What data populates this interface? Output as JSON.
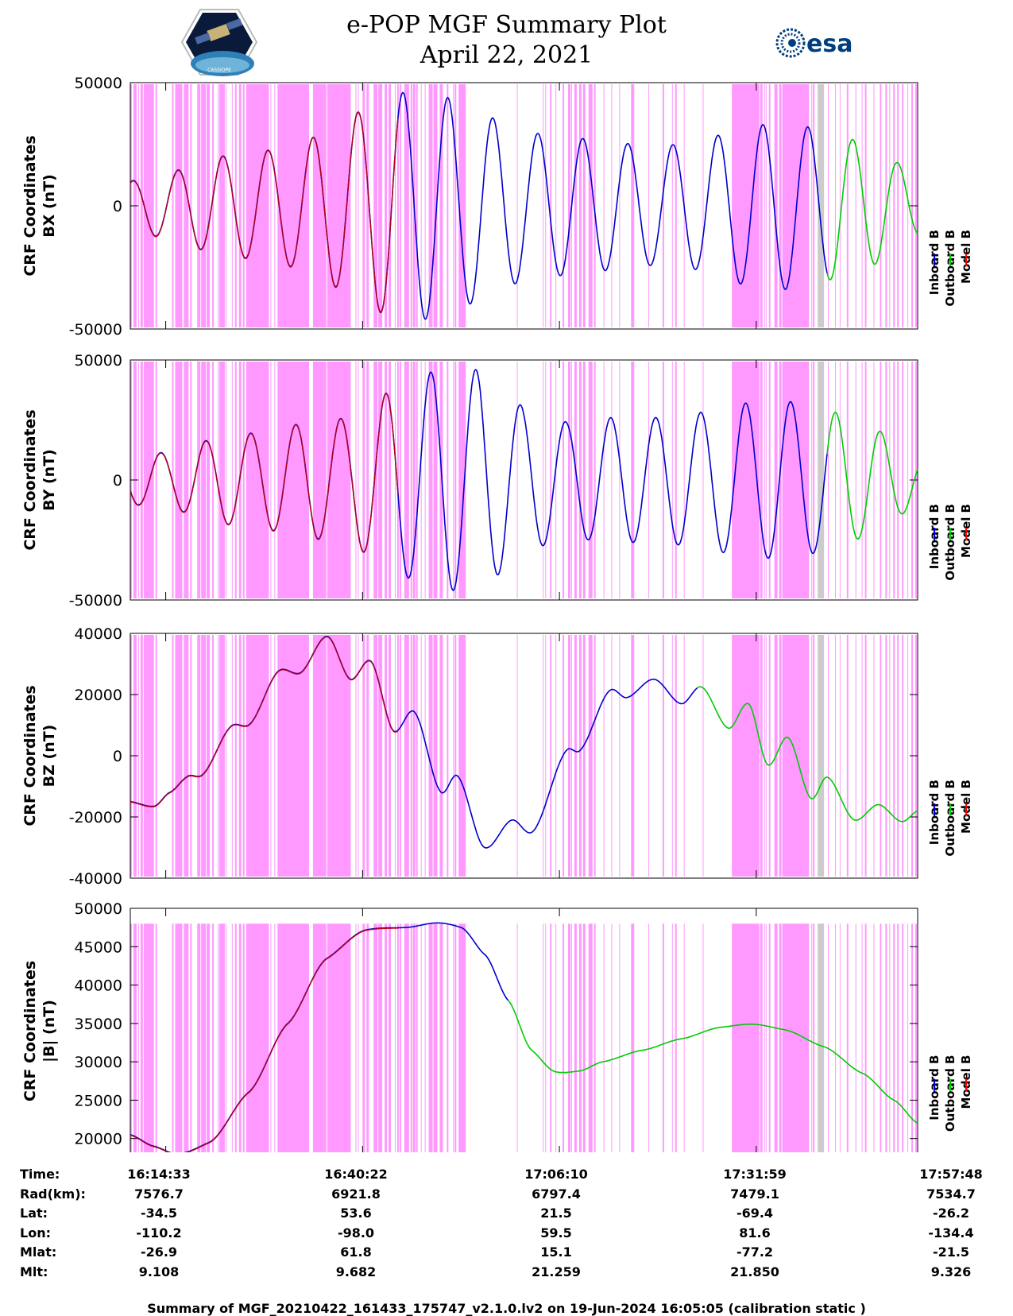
{
  "header": {
    "title_line1": "e-POP MGF Summary Plot",
    "title_line2": "April 22, 2021",
    "mission_logo_text": "CASSIOPE",
    "agency_logo_text": "esa"
  },
  "legend": {
    "items": [
      {
        "label": "Inboard B",
        "color": "#0000cc"
      },
      {
        "label": "Outboard B",
        "color": "#00cc00"
      },
      {
        "label": "Model B",
        "color": "#ff0000"
      }
    ]
  },
  "colors": {
    "shade": "#ff99ff",
    "shade_gray": "#cccccc",
    "inboard": "#0000cc",
    "outboard": "#00cc00",
    "model": "#cc0000"
  },
  "chart_data": [
    {
      "type": "line",
      "id": "bx",
      "ylabel_line1": "CRF Coordinates",
      "ylabel_line2": "BX (nT)",
      "ylim": [
        -50000,
        50000
      ],
      "yticks": [
        -50000,
        0,
        50000
      ],
      "ytick_labels": [
        "-50000",
        "0",
        "50000"
      ],
      "model_until_frac": 0.34,
      "outboard_from_frac": 0.885,
      "signal": {
        "kind": "osc",
        "offset": 0,
        "amps": [
          10000,
          14000,
          20000,
          22000,
          26000,
          36000,
          46000,
          46000,
          38000,
          30000,
          28000,
          26000,
          24000,
          26000,
          32000,
          34000,
          30000,
          24000,
          12000
        ],
        "phase": 1.2,
        "cycles": 17.5
      }
    },
    {
      "type": "line",
      "id": "by",
      "ylabel_line1": "CRF Coordinates",
      "ylabel_line2": "BY (nT)",
      "ylim": [
        -50000,
        50000
      ],
      "yticks": [
        -50000,
        0,
        50000
      ],
      "ytick_labels": [
        "-50000",
        "0",
        "50000"
      ],
      "model_until_frac": 0.34,
      "outboard_from_frac": 0.885,
      "signal": {
        "kind": "osc",
        "offset": 0,
        "amps": [
          10000,
          12000,
          18000,
          20000,
          24000,
          26000,
          38000,
          46000,
          46000,
          30000,
          24000,
          26000,
          26000,
          28000,
          32000,
          33000,
          29000,
          22000,
          10000
        ],
        "phase": 3.6,
        "cycles": 17.5
      }
    },
    {
      "type": "line",
      "id": "bz",
      "ylabel_line1": "CRF Coordinates",
      "ylabel_line2": "BZ (nT)",
      "ylim": [
        -40000,
        40000
      ],
      "yticks": [
        -40000,
        -20000,
        0,
        20000,
        40000
      ],
      "ytick_labels": [
        "-40000",
        "-20000",
        "0",
        "20000",
        "40000"
      ],
      "model_until_frac": 0.34,
      "outboard_from_frac": 0.72,
      "signal": {
        "kind": "points",
        "points": [
          [
            0,
            -15000
          ],
          [
            0.03,
            -16500
          ],
          [
            0.05,
            -12000
          ],
          [
            0.075,
            -6500
          ],
          [
            0.09,
            -6500
          ],
          [
            0.13,
            10000
          ],
          [
            0.15,
            10000
          ],
          [
            0.19,
            28000
          ],
          [
            0.215,
            27000
          ],
          [
            0.25,
            39000
          ],
          [
            0.28,
            25000
          ],
          [
            0.305,
            31000
          ],
          [
            0.335,
            8000
          ],
          [
            0.36,
            14500
          ],
          [
            0.395,
            -12000
          ],
          [
            0.415,
            -6500
          ],
          [
            0.45,
            -30000
          ],
          [
            0.485,
            -21000
          ],
          [
            0.51,
            -25000
          ],
          [
            0.555,
            2000
          ],
          [
            0.57,
            1500
          ],
          [
            0.61,
            21500
          ],
          [
            0.63,
            19000
          ],
          [
            0.665,
            25000
          ],
          [
            0.7,
            17000
          ],
          [
            0.725,
            22500
          ],
          [
            0.76,
            9000
          ],
          [
            0.785,
            17000
          ],
          [
            0.81,
            -3000
          ],
          [
            0.835,
            6000
          ],
          [
            0.865,
            -14000
          ],
          [
            0.885,
            -7000
          ],
          [
            0.92,
            -21000
          ],
          [
            0.95,
            -16000
          ],
          [
            0.98,
            -21500
          ],
          [
            1.0,
            -18000
          ]
        ]
      }
    },
    {
      "type": "line",
      "id": "bmag",
      "ylabel_line1": "CRF Coordinates",
      "ylabel_line2": "|B| (nT)",
      "ylim": [
        18000,
        50000
      ],
      "yticks": [
        20000,
        25000,
        30000,
        35000,
        40000,
        45000,
        50000
      ],
      "ytick_labels": [
        "20000",
        "25000",
        "30000",
        "35000",
        "40000",
        "45000",
        "50000"
      ],
      "model_until_frac": 0.34,
      "outboard_from_frac": 0.48,
      "shade_top_value": 48000,
      "signal": {
        "kind": "points",
        "points": [
          [
            0,
            20500
          ],
          [
            0.03,
            19000
          ],
          [
            0.06,
            18000
          ],
          [
            0.1,
            19500
          ],
          [
            0.15,
            26000
          ],
          [
            0.2,
            35000
          ],
          [
            0.25,
            43500
          ],
          [
            0.3,
            47200
          ],
          [
            0.35,
            47500
          ],
          [
            0.39,
            48100
          ],
          [
            0.42,
            47500
          ],
          [
            0.45,
            44000
          ],
          [
            0.48,
            38000
          ],
          [
            0.51,
            31500
          ],
          [
            0.54,
            28700
          ],
          [
            0.57,
            28800
          ],
          [
            0.6,
            30000
          ],
          [
            0.65,
            31500
          ],
          [
            0.7,
            33000
          ],
          [
            0.75,
            34500
          ],
          [
            0.79,
            34900
          ],
          [
            0.83,
            34200
          ],
          [
            0.88,
            32000
          ],
          [
            0.93,
            28500
          ],
          [
            0.97,
            25000
          ],
          [
            1.0,
            22000
          ]
        ]
      }
    }
  ],
  "shading": {
    "note": "fractions of the time axis that are shaded",
    "magenta": [
      [
        0.0,
        0.002
      ],
      [
        0.004,
        0.008
      ],
      [
        0.01,
        0.011
      ],
      [
        0.013,
        0.016
      ],
      [
        0.017,
        0.03
      ],
      [
        0.032,
        0.034
      ],
      [
        0.053,
        0.055
      ],
      [
        0.057,
        0.066
      ],
      [
        0.068,
        0.074
      ],
      [
        0.076,
        0.078
      ],
      [
        0.085,
        0.089
      ],
      [
        0.09,
        0.096
      ],
      [
        0.097,
        0.101
      ],
      [
        0.104,
        0.106
      ],
      [
        0.111,
        0.112
      ],
      [
        0.113,
        0.12
      ],
      [
        0.121,
        0.122
      ],
      [
        0.129,
        0.13
      ],
      [
        0.133,
        0.135
      ],
      [
        0.138,
        0.141
      ],
      [
        0.143,
        0.145
      ],
      [
        0.147,
        0.176
      ],
      [
        0.178,
        0.179
      ],
      [
        0.183,
        0.184
      ],
      [
        0.187,
        0.227
      ],
      [
        0.232,
        0.249
      ],
      [
        0.25,
        0.28
      ],
      [
        0.286,
        0.287
      ],
      [
        0.289,
        0.29
      ],
      [
        0.295,
        0.298
      ],
      [
        0.3,
        0.303
      ],
      [
        0.309,
        0.314
      ],
      [
        0.315,
        0.32
      ],
      [
        0.323,
        0.326
      ],
      [
        0.328,
        0.331
      ],
      [
        0.336,
        0.337
      ],
      [
        0.339,
        0.341
      ],
      [
        0.342,
        0.344
      ],
      [
        0.348,
        0.354
      ],
      [
        0.356,
        0.358
      ],
      [
        0.359,
        0.362
      ],
      [
        0.363,
        0.365
      ],
      [
        0.369,
        0.37
      ],
      [
        0.374,
        0.375
      ],
      [
        0.379,
        0.384
      ],
      [
        0.385,
        0.39
      ],
      [
        0.393,
        0.397
      ],
      [
        0.402,
        0.404
      ],
      [
        0.41,
        0.411
      ],
      [
        0.412,
        0.414
      ],
      [
        0.417,
        0.426
      ],
      [
        0.491,
        0.492
      ],
      [
        0.524,
        0.525
      ],
      [
        0.527,
        0.528
      ],
      [
        0.533,
        0.535
      ],
      [
        0.54,
        0.541
      ],
      [
        0.549,
        0.551
      ],
      [
        0.556,
        0.559
      ],
      [
        0.56,
        0.561
      ],
      [
        0.564,
        0.567
      ],
      [
        0.57,
        0.573
      ],
      [
        0.575,
        0.578
      ],
      [
        0.582,
        0.587
      ],
      [
        0.589,
        0.591
      ],
      [
        0.601,
        0.602
      ],
      [
        0.611,
        0.612
      ],
      [
        0.621,
        0.622
      ],
      [
        0.636,
        0.64
      ],
      [
        0.658,
        0.659
      ],
      [
        0.676,
        0.678
      ],
      [
        0.688,
        0.689
      ],
      [
        0.692,
        0.694
      ],
      [
        0.703,
        0.704
      ],
      [
        0.727,
        0.728
      ],
      [
        0.764,
        0.799
      ],
      [
        0.8,
        0.803
      ],
      [
        0.805,
        0.806
      ],
      [
        0.807,
        0.808
      ],
      [
        0.811,
        0.813
      ],
      [
        0.818,
        0.822
      ],
      [
        0.824,
        0.827
      ],
      [
        0.828,
        0.862
      ],
      [
        0.865,
        0.866
      ],
      [
        0.867,
        0.869
      ],
      [
        0.879,
        0.881
      ],
      [
        0.886,
        0.887
      ],
      [
        0.895,
        0.896
      ],
      [
        0.901,
        0.902
      ],
      [
        0.91,
        0.912
      ],
      [
        0.921,
        0.922
      ],
      [
        0.929,
        0.93
      ],
      [
        0.933,
        0.935
      ],
      [
        0.944,
        0.945
      ],
      [
        0.952,
        0.954
      ],
      [
        0.959,
        0.961
      ],
      [
        0.964,
        0.965
      ],
      [
        0.969,
        0.971
      ],
      [
        0.974,
        0.976
      ],
      [
        0.98,
        0.982
      ],
      [
        0.987,
        0.988
      ],
      [
        0.992,
        0.994
      ],
      [
        0.997,
        0.999
      ]
    ],
    "gray": [
      [
        0.873,
        0.881
      ]
    ]
  },
  "ephemeris": {
    "labels": [
      "Time:",
      "Rad(km):",
      "Lat:",
      "Lon:",
      "Mlat:",
      "Mlt:"
    ],
    "columns": [
      {
        "time": "16:14:33",
        "rad": "7576.7",
        "lat": "-34.5",
        "lon": "-110.2",
        "mlat": "-26.9",
        "mlt": "9.108"
      },
      {
        "time": "16:40:22",
        "rad": "6921.8",
        "lat": "53.6",
        "lon": "-98.0",
        "mlat": "61.8",
        "mlt": "9.682"
      },
      {
        "time": "17:06:10",
        "rad": "6797.4",
        "lat": "21.5",
        "lon": "59.5",
        "mlat": "15.1",
        "mlt": "21.259"
      },
      {
        "time": "17:31:59",
        "rad": "7479.1",
        "lat": "-69.4",
        "lon": "81.6",
        "mlat": "-77.2",
        "mlt": "21.850"
      },
      {
        "time": "17:57:48",
        "rad": "7534.7",
        "lat": "-26.2",
        "lon": "-134.4",
        "mlat": "-21.5",
        "mlt": "9.326"
      }
    ]
  },
  "footer": {
    "text": "Summary of MGF_20210422_161433_175747_v2.1.0.lv2 on 19-Jun-2024 16:05:05 (calibration static )"
  }
}
